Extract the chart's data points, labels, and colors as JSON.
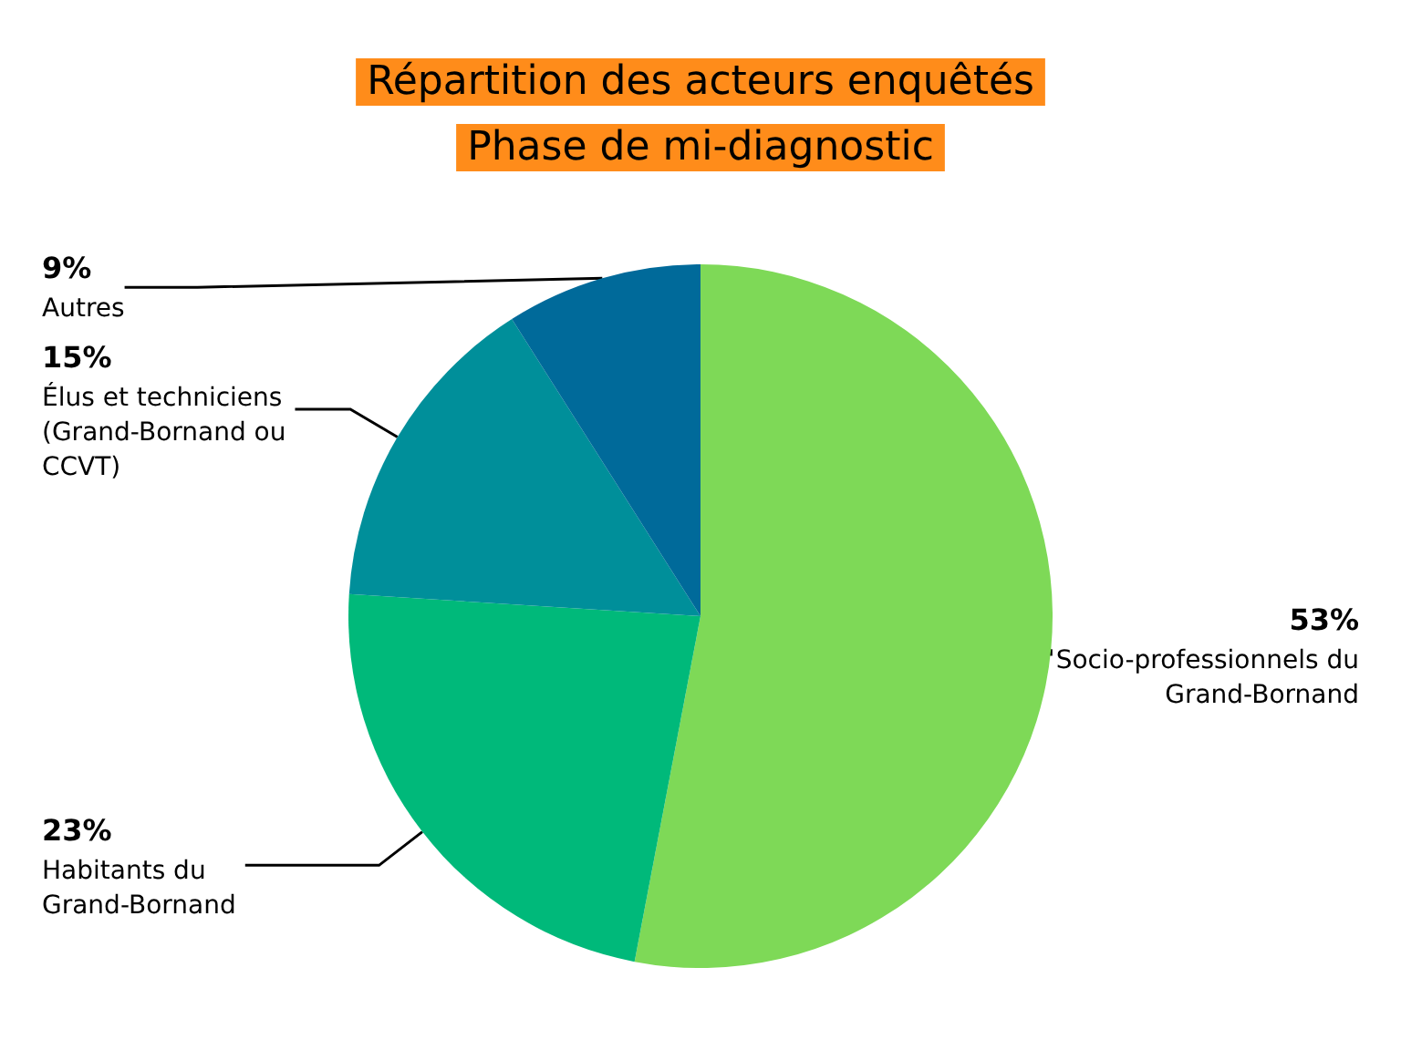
{
  "chart_data": {
    "type": "pie",
    "title": "Répartition des acteurs enquêtés",
    "subtitle": "Phase de mi-diagnostic",
    "categories": [
      "Socio-professionnels du\nGrand-Bornand",
      "Habitants du\nGrand-Bornand",
      "Élus et techniciens\n(Grand-Bornand ou\nCCVT)",
      "Autres"
    ],
    "values": [
      53,
      23,
      15,
      9
    ],
    "value_labels": [
      "53%",
      "23%",
      "15%",
      "9%"
    ],
    "colors": [
      "#7ed957",
      "#00b97a",
      "#008f9a",
      "#006a9a"
    ],
    "legend": false
  }
}
